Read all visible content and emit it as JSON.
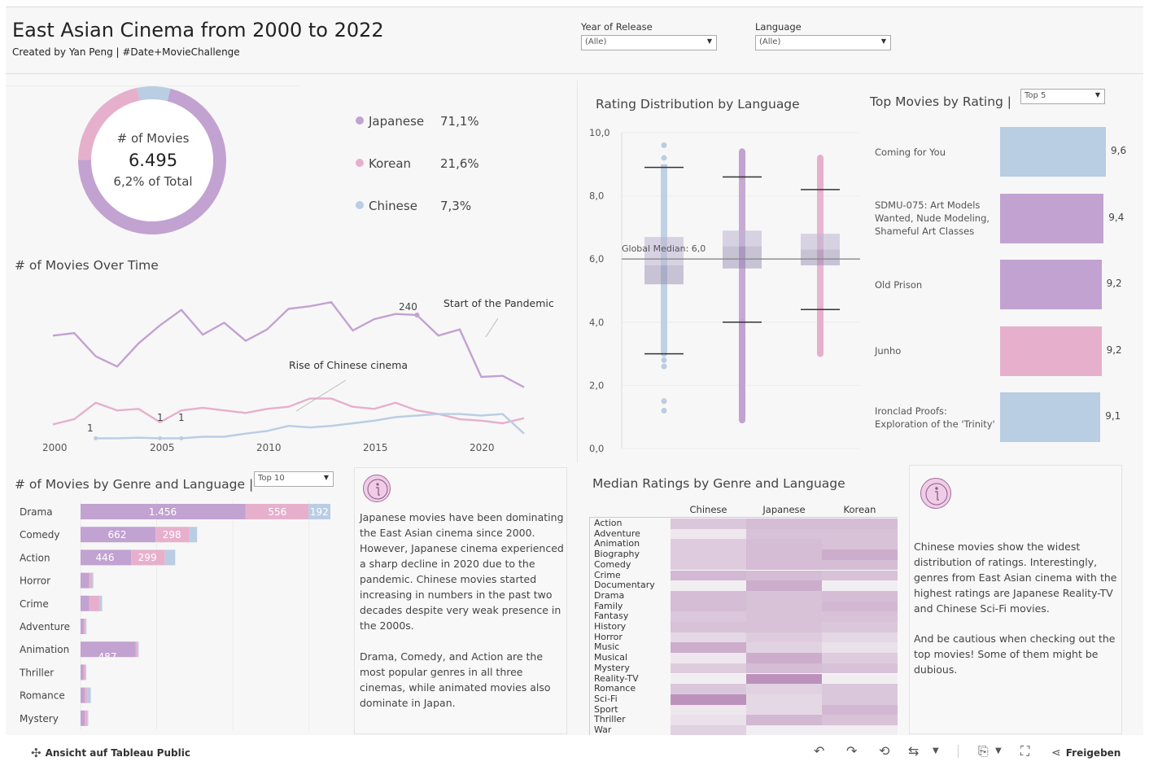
{
  "header": {
    "title": "East Asian Cinema from 2000 to 2022",
    "subtitle": "Created by Yan Peng | #Date+MovieChallenge"
  },
  "filters": {
    "year": {
      "label": "Year of Release",
      "value": "(Alle)"
    },
    "language": {
      "label": "Language",
      "value": "(Alle)"
    }
  },
  "colors": {
    "japanese": "#c2a2d1",
    "korean": "#e6b0cd",
    "chinese": "#b9cde3"
  },
  "donut": {
    "label": "# of Movies",
    "value": "6.495",
    "subtext": "6,2% of Total",
    "shares": {
      "japanese": 71.1,
      "korean": 21.6,
      "chinese": 7.3
    }
  },
  "legend": [
    {
      "name": "Japanese",
      "pct": "71,1%"
    },
    {
      "name": "Korean",
      "pct": "21,6%"
    },
    {
      "name": "Chinese",
      "pct": "7,3%"
    }
  ],
  "timeline": {
    "title": "# of Movies Over Time",
    "x_ticks": [
      "2000",
      "2005",
      "2010",
      "2015",
      "2020"
    ],
    "annotation_pandemic": "Start of the Pandemic",
    "annotation_chinese": "Rise of Chinese cinema",
    "labels": {
      "peak": "240",
      "c1": "1",
      "c2": "1",
      "c3": "1"
    }
  },
  "chart_data": [
    {
      "type": "line",
      "title": "# of Movies Over Time",
      "x": [
        2000,
        2001,
        2002,
        2003,
        2004,
        2005,
        2006,
        2007,
        2008,
        2009,
        2010,
        2011,
        2012,
        2013,
        2014,
        2015,
        2016,
        2017,
        2018,
        2019,
        2020,
        2021,
        2022
      ],
      "series": [
        {
          "name": "Japanese",
          "values": [
            200,
            205,
            160,
            140,
            185,
            220,
            250,
            202,
            225,
            190,
            212,
            252,
            257,
            265,
            210,
            232,
            242,
            240,
            200,
            212,
            120,
            122,
            100
          ]
        },
        {
          "name": "Korean",
          "values": [
            28,
            38,
            70,
            55,
            58,
            32,
            55,
            60,
            55,
            50,
            58,
            62,
            78,
            78,
            62,
            58,
            70,
            55,
            48,
            38,
            35,
            30,
            40
          ]
        },
        {
          "name": "Chinese",
          "values": [
            null,
            null,
            1,
            1,
            2,
            1,
            1,
            4,
            4,
            10,
            15,
            25,
            22,
            25,
            30,
            35,
            42,
            45,
            48,
            48,
            45,
            48,
            10
          ]
        }
      ]
    },
    {
      "type": "bar",
      "title": "# of Movies by Genre and Language",
      "categories": [
        "Drama",
        "Comedy",
        "Action",
        "Horror",
        "Crime",
        "Adventure",
        "Animation",
        "Thriller",
        "Romance",
        "Mystery"
      ],
      "series": [
        {
          "name": "Japanese",
          "values": [
            1456,
            662,
            446,
            75,
            75,
            28,
            487,
            28,
            38,
            38
          ]
        },
        {
          "name": "Korean",
          "values": [
            556,
            298,
            299,
            28,
            95,
            14,
            18,
            16,
            22,
            20
          ]
        },
        {
          "name": "Chinese",
          "values": [
            192,
            68,
            90,
            10,
            20,
            10,
            8,
            7,
            30,
            10
          ]
        }
      ],
      "labels": {
        "Drama": [
          "1.456",
          "556",
          "192"
        ],
        "Comedy": [
          "662",
          "298"
        ],
        "Action": [
          "446",
          "299"
        ],
        "Animation": [
          "487"
        ]
      }
    },
    {
      "type": "box",
      "title": "Rating Distribution by Language",
      "ylim": [
        0,
        10
      ],
      "y_ticks": [
        "0,0",
        "2,0",
        "4,0",
        "6,0",
        "8,0",
        "10,0"
      ],
      "reference_line": {
        "label": "Global Median: 6,0",
        "value": 6.0
      },
      "boxes": [
        {
          "name": "Chinese",
          "min": 3.0,
          "q1": 5.2,
          "median": 5.8,
          "q3": 6.7,
          "max": 8.9,
          "out_low": [
            2.8,
            2.6,
            1.5,
            1.2
          ],
          "out_high": [
            9.2,
            9.6
          ]
        },
        {
          "name": "Japanese",
          "min": 4.0,
          "q1": 5.7,
          "median": 6.4,
          "q3": 6.9,
          "max": 8.6,
          "out_low": [
            0.9,
            3.8
          ],
          "out_high": [
            9.4
          ]
        },
        {
          "name": "Korean",
          "min": 4.4,
          "q1": 5.8,
          "median": 6.3,
          "q3": 6.8,
          "max": 8.2,
          "out_low": [
            3.0
          ],
          "out_high": [
            9.2
          ]
        }
      ]
    },
    {
      "type": "bar",
      "title": "Top Movies by Rating",
      "categories": [
        "Coming for You",
        "SDMU-075: Art Models Wanted, Nude Modeling, Shameful Art Classes",
        "Old Prison",
        "Junho",
        "Ironclad Proofs: Exploration of the 'Trinity'"
      ],
      "values": [
        9.6,
        9.4,
        9.2,
        9.2,
        9.1
      ],
      "value_labels": [
        "9,6",
        "9,4",
        "9,2",
        "9,2",
        "9,1"
      ],
      "languages": [
        "Chinese",
        "Japanese",
        "Japanese",
        "Korean",
        "Chinese"
      ]
    },
    {
      "type": "heatmap",
      "title": "Median Ratings by Genre and Language",
      "columns": [
        "Chinese",
        "Japanese",
        "Korean"
      ],
      "rows": [
        "Action",
        "Adventure",
        "Animation",
        "Biography",
        "Comedy",
        "Crime",
        "Documentary",
        "Drama",
        "Family",
        "Fantasy",
        "History",
        "Horror",
        "Music",
        "Musical",
        "Mystery",
        "Reality-TV",
        "Romance",
        "Sci-Fi",
        "Sport",
        "Thriller",
        "War"
      ],
      "shade_levels": [
        [
          0.35,
          0.45,
          0.45
        ],
        [
          0.05,
          0.4,
          0.4
        ],
        [
          0.3,
          0.45,
          0.4
        ],
        [
          0.3,
          0.45,
          0.6
        ],
        [
          0.3,
          0.45,
          0.45
        ],
        [
          0.5,
          0.45,
          0.4
        ],
        [
          0,
          0.6,
          0
        ],
        [
          0.45,
          0.4,
          0.45
        ],
        [
          0.45,
          0.4,
          0.5
        ],
        [
          0.35,
          0.4,
          0.4
        ],
        [
          0.4,
          0.4,
          0.35
        ],
        [
          0.2,
          0.3,
          0.2
        ],
        [
          0.6,
          0.25,
          0.1
        ],
        [
          0.05,
          0.6,
          0.3
        ],
        [
          0.3,
          0.45,
          0.4
        ],
        [
          0,
          0.85,
          0
        ],
        [
          0.35,
          0.25,
          0.35
        ],
        [
          0.85,
          0.2,
          0.35
        ],
        [
          0.05,
          0.2,
          0.5
        ],
        [
          0.1,
          0.5,
          0.4
        ],
        [
          0.25,
          0,
          0
        ]
      ]
    }
  ],
  "genre_chart": {
    "title": "# of Movies by Genre and Language |",
    "dropdown": "Top 10",
    "labels": {
      "drama_j": "1.456",
      "drama_k": "556",
      "drama_c": "192",
      "comedy_j": "662",
      "comedy_k": "298",
      "action_j": "446",
      "action_k": "299",
      "animation_j": "487"
    }
  },
  "box_chart": {
    "title": "Rating Distribution by Language",
    "median_label": "Global Median: 6,0"
  },
  "top_movies": {
    "title": "Top Movies by Rating |",
    "dropdown": "Top 5"
  },
  "heatmap": {
    "title": "Median Ratings by Genre and Language"
  },
  "notes": {
    "left_p1": "Japanese movies have been dominating the East Asian cinema since 2000. However, Japanese cinema experienced a sharp decline in 2020 due to the pandemic. Chinese movies started increasing in numbers in the past two decades despite very weak presence in the 2000s.",
    "left_p2": "Drama, Comedy, and Action are the most popular genres in all three cinemas, while animated movies also dominate in Japan.",
    "right_p1": "Chinese movies show the widest distribution of ratings. Interestingly, genres from East Asian cinema with the highest ratings are Japanese Reality-TV and Chinese Sci-Fi movies.",
    "right_p2": "And be cautious when checking out the top movies! Some of them might be dubious."
  },
  "toolbar": {
    "view_on_public": "Ansicht auf Tableau Public",
    "share": "Freigeben"
  }
}
